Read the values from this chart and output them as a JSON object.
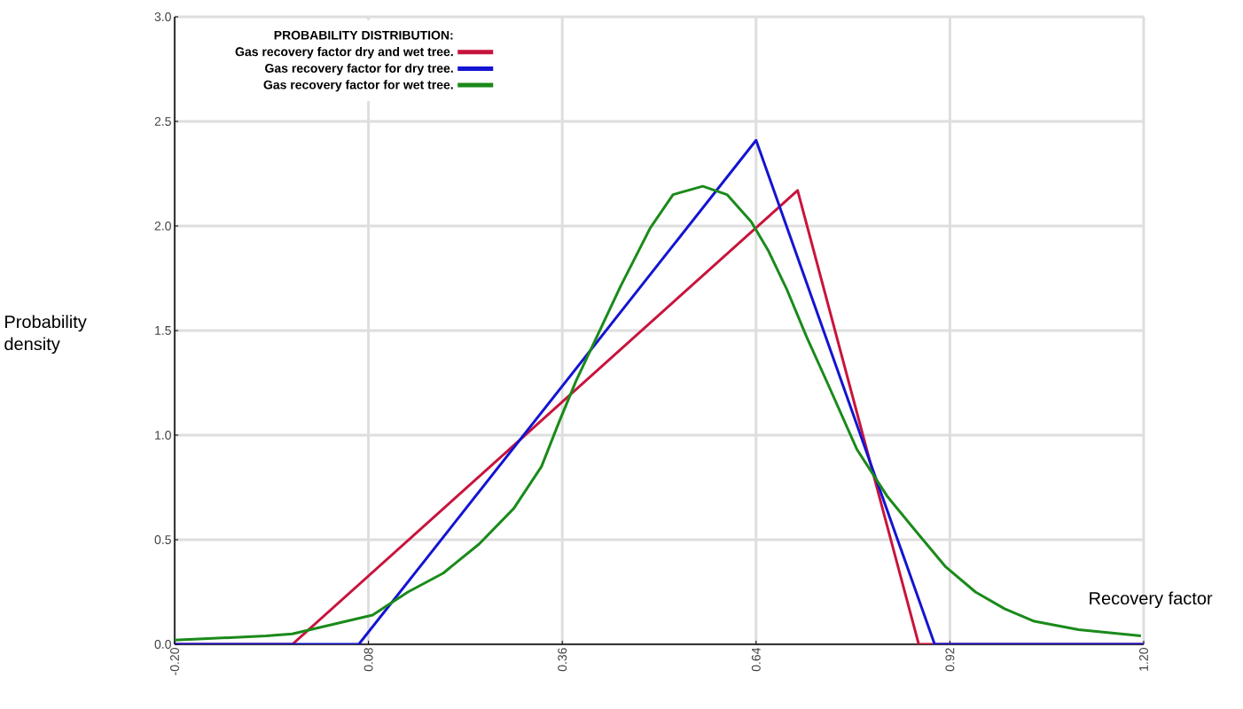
{
  "chart_data": {
    "type": "line",
    "xlabel": "Recovery factor",
    "ylabel": "Probability density",
    "legend_title": "PROBABILITY DISTRIBUTION:",
    "legend": "top left",
    "grid": true,
    "xlim": [
      -0.2,
      1.2
    ],
    "ylim": [
      0,
      3
    ],
    "xticks": [
      {
        "value": -0.2,
        "label": "-0.20"
      },
      {
        "value": 0.08,
        "label": "0.08"
      },
      {
        "value": 0.36,
        "label": "0.36"
      },
      {
        "value": 0.64,
        "label": "0.64"
      },
      {
        "value": 0.92,
        "label": "0.92"
      },
      {
        "value": 1.2,
        "label": "1.20"
      }
    ],
    "yticks": [
      {
        "value": 0,
        "label": "0.0"
      },
      {
        "value": 0.5,
        "label": "0.5"
      },
      {
        "value": 1,
        "label": "1.0"
      },
      {
        "value": 1.5,
        "label": "1.5"
      },
      {
        "value": 2,
        "label": "2.0"
      },
      {
        "value": 2.5,
        "label": "2.5"
      },
      {
        "value": 3,
        "label": "3.0"
      }
    ],
    "series": [
      {
        "name": "Gas recovery factor dry and wet tree.",
        "color": "#c8143c",
        "x": [
          -0.2,
          -0.03,
          0.7,
          0.875,
          1.2
        ],
        "values": [
          0,
          0,
          2.17,
          0,
          0
        ]
      },
      {
        "name": "Gas recovery factor for dry tree.",
        "color": "#1414d2",
        "x": [
          -0.2,
          0.066,
          0.64,
          0.898,
          1.2
        ],
        "values": [
          0,
          0,
          2.41,
          0,
          0
        ]
      },
      {
        "name": "Gas recovery factor for wet tree.",
        "color": "#1a8a1a",
        "x": [
          -0.2,
          -0.068,
          -0.03,
          0.086,
          0.137,
          0.188,
          0.24,
          0.29,
          0.33,
          0.355,
          0.38,
          0.444,
          0.487,
          0.52,
          0.563,
          0.598,
          0.633,
          0.658,
          0.684,
          0.713,
          0.743,
          0.786,
          0.829,
          0.871,
          0.914,
          0.957,
          0.999,
          1.042,
          1.106,
          1.196
        ],
        "values": [
          0.02,
          0.04,
          0.05,
          0.14,
          0.25,
          0.34,
          0.48,
          0.65,
          0.85,
          1.06,
          1.26,
          1.71,
          1.99,
          2.15,
          2.19,
          2.15,
          2.02,
          1.88,
          1.7,
          1.47,
          1.25,
          0.93,
          0.71,
          0.54,
          0.37,
          0.25,
          0.17,
          0.11,
          0.07,
          0.04
        ]
      }
    ]
  }
}
